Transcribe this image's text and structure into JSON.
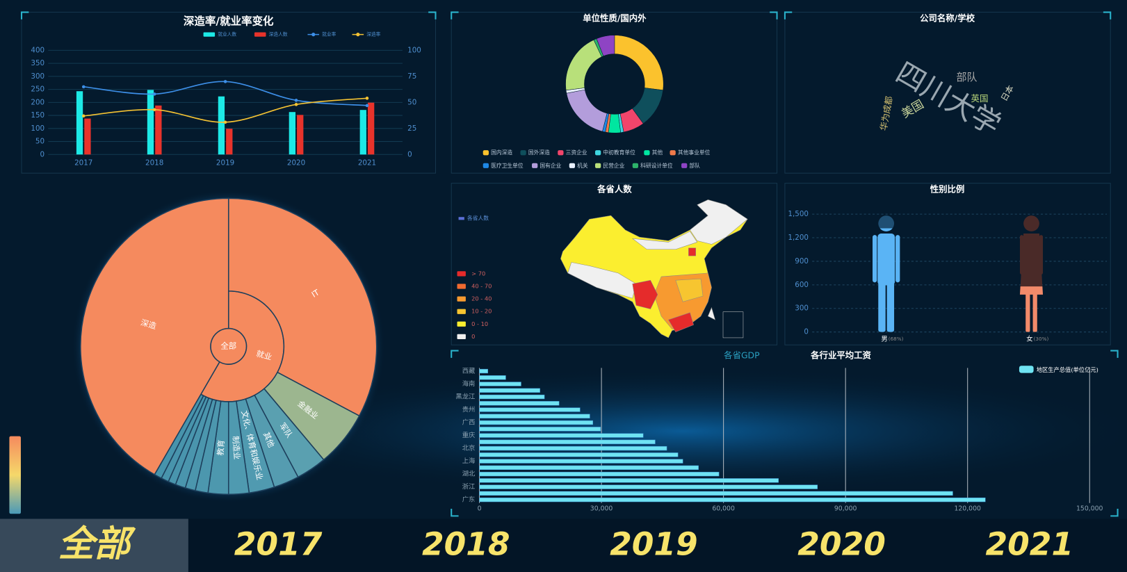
{
  "chart_data": [
    {
      "type": "bar",
      "title": "深造率/就业率变化",
      "categories": [
        "2017",
        "2018",
        "2019",
        "2020",
        "2021"
      ],
      "series": [
        {
          "name": "就业人数",
          "type": "bar",
          "color": "#1de9e6",
          "values": [
            243,
            248,
            223,
            163,
            171
          ]
        },
        {
          "name": "深造人数",
          "type": "bar",
          "color": "#e8332b",
          "values": [
            138,
            188,
            99,
            152,
            199
          ]
        },
        {
          "name": "就业率",
          "type": "line",
          "axis": "y2",
          "color": "#3d8fe8",
          "values": [
            65,
            58,
            70,
            52,
            47
          ]
        },
        {
          "name": "深造率",
          "type": "line",
          "axis": "y2",
          "color": "#f5c333",
          "values": [
            37,
            43,
            31,
            48,
            54
          ]
        }
      ],
      "ylim": [
        0,
        400
      ],
      "yticks": [
        0,
        50,
        100,
        150,
        200,
        250,
        300,
        350,
        400
      ],
      "y2lim": [
        0,
        100
      ],
      "y2ticks": [
        0,
        25,
        50,
        75,
        100
      ],
      "grid": true
    },
    {
      "type": "pie",
      "title": "单位性质/国内外",
      "categories": [
        "国内深造",
        "国外深造",
        "三资企业",
        "中初教育单位",
        "其他",
        "其他事业单位",
        "医疗卫生单位",
        "国有企业",
        "机关",
        "民营企业",
        "科研设计单位",
        "部队"
      ],
      "values": [
        27,
        13,
        7,
        1,
        4,
        1,
        1,
        18,
        1,
        20,
        1,
        6
      ],
      "colors": [
        "#fbc22d",
        "#0f4f5c",
        "#f2456b",
        "#3fd6e0",
        "#00e6a0",
        "#f07a4a",
        "#1e88e5",
        "#b39ddb",
        "#e8f0ff",
        "#b8e07a",
        "#2db36a",
        "#8e44c4"
      ]
    },
    {
      "type": "wordcloud",
      "title": "公司名称/学校",
      "words": [
        "四川大学",
        "美国",
        "部队",
        "英国",
        "日本",
        "华为成都"
      ],
      "values": [
        100,
        30,
        25,
        18,
        16,
        18
      ],
      "colors": [
        "#9aa7b0",
        "#c8d49a",
        "#a8a8a8",
        "#b8d67a",
        "#d8d8c0",
        "#d4c070"
      ]
    },
    {
      "type": "map",
      "title": "各省人数",
      "series": [
        {
          "name": "各省人数",
          "color": "#5b6fd6"
        }
      ],
      "pieces": [
        {
          "label": "> 70",
          "color": "#e52b2b"
        },
        {
          "label": "40 - 70",
          "color": "#f06a30"
        },
        {
          "label": "20 - 40",
          "color": "#f79a30"
        },
        {
          "label": "10 - 20",
          "color": "#f7c530"
        },
        {
          "label": "0 - 10",
          "color": "#fbee2f"
        },
        {
          "label": "0",
          "color": "#f0f0f0"
        }
      ]
    },
    {
      "type": "pictorial",
      "title": "性别比例",
      "categories": [
        "男",
        "女"
      ],
      "values": [
        1320,
        580
      ],
      "share_labels": [
        "(68%)",
        "(30%)"
      ],
      "colors": [
        "#5ab4f5",
        "#f28a6a"
      ],
      "back_colors": [
        "#1f4f73",
        "#4a2a28"
      ],
      "ylim": [
        0,
        1500
      ],
      "yticks": [
        0,
        300,
        600,
        900,
        {
          "value": 1200,
          "label": "1,200"
        },
        {
          "value": 1500,
          "label": "1,500"
        }
      ],
      "grid": true
    },
    {
      "type": "barh",
      "tabs": [
        "各省GDP",
        "各行业平均工资"
      ],
      "categories": [
        "广东",
        null,
        "浙江",
        null,
        "湖北",
        null,
        "上海",
        null,
        "北京",
        null,
        "重庆",
        null,
        "广西",
        null,
        "贵州",
        null,
        "黑龙江",
        null,
        "海南",
        null,
        "西藏"
      ],
      "series": [
        {
          "name": "地区生产总值(单位亿元)",
          "color": "#6fe3f2",
          "values": [
            124370,
            116364,
            83096,
            73516,
            58887,
            53851,
            50013,
            48810,
            46063,
            43215,
            40270,
            29801,
            27894,
            27147,
            24741,
            19586,
            15983,
            14879,
            10243,
            6475,
            2080
          ]
        }
      ],
      "xlim": [
        0,
        150000
      ],
      "xticks": [
        0,
        {
          "value": 30000,
          "label": "30,000"
        },
        {
          "value": 60000,
          "label": "60,000"
        },
        {
          "value": 90000,
          "label": "90,000"
        },
        {
          "value": 120000,
          "label": "120,000"
        },
        {
          "value": 150000,
          "label": "150,000"
        }
      ],
      "grid": true
    },
    {
      "type": "sunburst",
      "visual_map_colors": [
        "#f58a5e",
        "#f5d86a",
        "#4a9ab8"
      ],
      "data": {
        "name": "全部",
        "color": "#f58a5e",
        "children": [
          {
            "name": "就业",
            "color": "#f58a5e",
            "children": [
              {
                "name": "IT",
                "color": "#f58a5e",
                "value": 118
              },
              {
                "name": "金融业",
                "color": "#9cb68f",
                "value": 22
              },
              {
                "name": "军队",
                "color": "#5aa0b0",
                "value": 12
              },
              {
                "name": "其他",
                "color": "#559cb0",
                "value": 10
              },
              {
                "name": "文化、体育和娱乐业",
                "color": "#509ab0",
                "value": 10
              },
              {
                "name": "制造业",
                "color": "#4f9ab0",
                "value": 8
              },
              {
                "name": "教育",
                "color": "#4d98ae",
                "value": 8
              },
              {
                "name": null,
                "color": "#4c97ae",
                "value": 5
              },
              {
                "name": null,
                "color": "#4b96ad",
                "value": 4
              },
              {
                "name": null,
                "color": "#4a95ad",
                "value": 4
              },
              {
                "name": null,
                "color": "#4995ad",
                "value": 3
              },
              {
                "name": null,
                "color": "#4894ac",
                "value": 3
              },
              {
                "name": null,
                "color": "#4794ac",
                "value": 3
              }
            ]
          },
          {
            "name": "深造",
            "color": "#f58a5e",
            "value": 150
          }
        ]
      }
    }
  ],
  "tabs": [
    "全部",
    "2017",
    "2018",
    "2019",
    "2020",
    "2021"
  ]
}
